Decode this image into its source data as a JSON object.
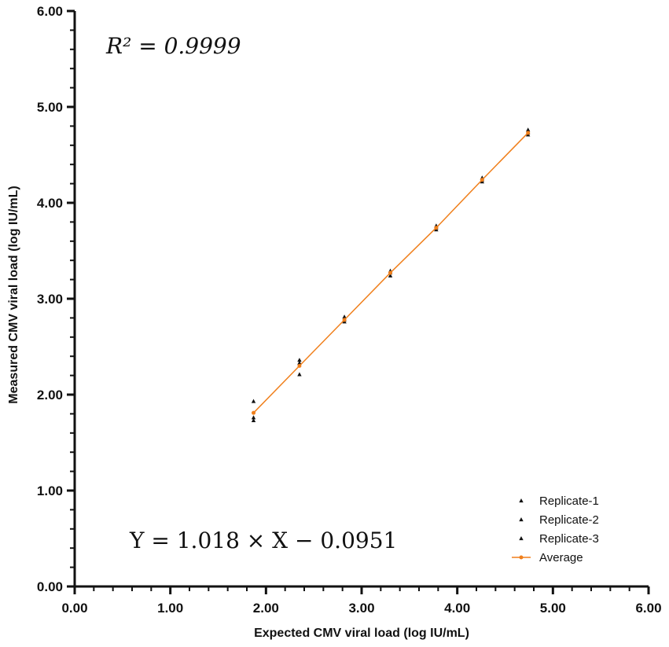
{
  "chart_data": {
    "type": "scatter",
    "xlabel": "Expected CMV viral load (log IU/mL)",
    "ylabel": "Measured CMV viral load (log IU/mL)",
    "xlim": [
      0,
      6
    ],
    "ylim": [
      0,
      6
    ],
    "x_ticks": [
      "0.00",
      "1.00",
      "2.00",
      "3.00",
      "4.00",
      "5.00",
      "6.00"
    ],
    "y_ticks": [
      "0.00",
      "1.00",
      "2.00",
      "3.00",
      "4.00",
      "5.00",
      "6.00"
    ],
    "minor_ticks_per_major": 5,
    "grid": false,
    "legend_position": "bottom-right",
    "annotations": {
      "r2_label": "R² = 0.9999",
      "equation": "Y = 1.018 × X − 0.0951"
    },
    "x": [
      1.87,
      2.35,
      2.82,
      3.3,
      3.78,
      4.26,
      4.74
    ],
    "series": [
      {
        "name": "Replicate-1",
        "marker": "triangle",
        "color": "#111111",
        "values": [
          1.93,
          2.36,
          2.81,
          3.29,
          3.76,
          4.26,
          4.76
        ]
      },
      {
        "name": "Replicate-2",
        "marker": "triangle",
        "color": "#111111",
        "values": [
          1.76,
          2.33,
          2.78,
          3.27,
          3.74,
          4.24,
          4.73
        ]
      },
      {
        "name": "Replicate-3",
        "marker": "triangle",
        "color": "#111111",
        "values": [
          1.73,
          2.21,
          2.76,
          3.24,
          3.72,
          4.22,
          4.71
        ]
      },
      {
        "name": "Average",
        "marker": "circle-line",
        "color": "#f07f1b",
        "values": [
          1.81,
          2.3,
          2.78,
          3.27,
          3.74,
          4.24,
          4.73
        ]
      }
    ]
  }
}
